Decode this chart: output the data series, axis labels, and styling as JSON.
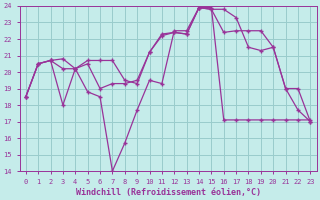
{
  "xlabel": "Windchill (Refroidissement éolien,°C)",
  "background_color": "#c5ecea",
  "grid_color": "#99cccc",
  "line_color": "#993399",
  "xlim_min": -0.5,
  "xlim_max": 23.5,
  "ylim_min": 14,
  "ylim_max": 24,
  "xticks": [
    0,
    1,
    2,
    3,
    4,
    5,
    6,
    7,
    8,
    9,
    10,
    11,
    12,
    13,
    14,
    15,
    16,
    17,
    18,
    19,
    20,
    21,
    22,
    23
  ],
  "yticks": [
    14,
    15,
    16,
    17,
    18,
    19,
    20,
    21,
    22,
    23,
    24
  ],
  "series1_y": [
    18.5,
    20.5,
    20.7,
    20.8,
    20.2,
    20.7,
    20.7,
    20.7,
    19.5,
    19.3,
    21.2,
    22.3,
    22.4,
    22.3,
    23.9,
    23.8,
    23.8,
    23.3,
    21.5,
    21.3,
    21.5,
    19.0,
    19.0,
    17.0
  ],
  "series2_y": [
    18.5,
    20.5,
    20.7,
    20.2,
    20.2,
    20.5,
    19.0,
    19.3,
    19.3,
    19.5,
    21.2,
    22.2,
    22.4,
    22.3,
    23.9,
    23.8,
    22.4,
    22.5,
    22.5,
    22.5,
    21.5,
    19.0,
    17.7,
    17.0
  ],
  "series3_y": [
    18.5,
    20.5,
    20.7,
    18.0,
    20.2,
    18.8,
    18.5,
    14.0,
    15.7,
    17.7,
    19.5,
    19.3,
    22.5,
    22.5,
    23.9,
    23.9,
    17.1,
    17.1,
    17.1,
    17.1,
    17.1,
    17.1,
    17.1,
    17.1
  ]
}
